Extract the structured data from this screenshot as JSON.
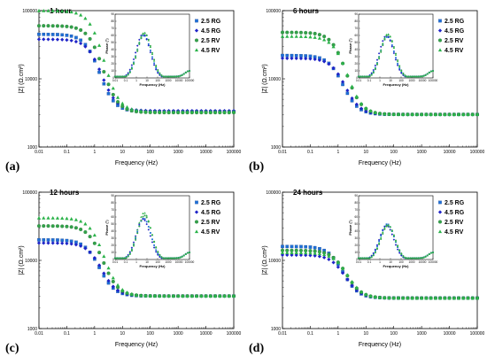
{
  "figure": {
    "legend_entries": [
      "2.5 RG",
      "4.5 RG",
      "2.5 RV",
      "4.5 RV"
    ],
    "colors": {
      "2.5 RG": "#1f6fd6",
      "4.5 RG": "#1f24c8",
      "2.5 RV": "#33a24a",
      "4.5 RV": "#2bb34a"
    },
    "markers": {
      "2.5 RG": "square",
      "4.5 RG": "diamond",
      "2.5 RV": "circle",
      "4.5 RV": "triangle"
    }
  },
  "chart_data": [
    {
      "type": "scatter",
      "panel_label": "(a)",
      "title": "1 hour",
      "xlabel": "Frequency (Hz)",
      "ylabel": "|Z| (Ω.cm²)",
      "xscale": "log",
      "yscale": "log",
      "xlim": [
        0.01,
        100000
      ],
      "ylim": [
        1000,
        100000
      ],
      "xticks": [
        "0.01",
        "0.1",
        "1",
        "10",
        "100",
        "1000",
        "10000",
        "100000"
      ],
      "yticks": [
        "1000",
        "10000",
        "100000"
      ],
      "legend": "inside inset, right",
      "series": [
        {
          "name": "2.5 RG",
          "low_freq_modulus": 45000,
          "high_freq_modulus": 3300
        },
        {
          "name": "4.5 RG",
          "low_freq_modulus": 38000,
          "high_freq_modulus": 3400
        },
        {
          "name": "2.5 RV",
          "low_freq_modulus": 60000,
          "high_freq_modulus": 3200
        },
        {
          "name": "4.5 RV",
          "low_freq_modulus": 100000,
          "high_freq_modulus": 3300
        }
      ],
      "inset": {
        "xlabel": "Frequency (Hz)",
        "ylabel": "Phase (°)",
        "xscale": "log",
        "xlim": [
          0.01,
          100000
        ],
        "ylim": [
          0,
          90
        ],
        "xticks": [
          "0.01",
          "0.1",
          "1",
          "10",
          "100",
          "1000",
          "10000",
          "100000"
        ],
        "yticks": [
          "0",
          "10",
          "20",
          "30",
          "40",
          "50",
          "60",
          "70",
          "80",
          "90"
        ],
        "peak_frequency_hz": 5,
        "peak_phase": [
          60,
          62,
          63,
          64
        ]
      }
    },
    {
      "type": "scatter",
      "panel_label": "(b)",
      "title": "6 hours",
      "xlabel": "Frequency (Hz)",
      "ylabel": "|Z| (Ω.cm²)",
      "xscale": "log",
      "yscale": "log",
      "xlim": [
        0.01,
        100000
      ],
      "ylim": [
        1000,
        100000
      ],
      "xticks": [
        "0.01",
        "0.1",
        "1",
        "10",
        "100",
        "1000",
        "10000",
        "100000"
      ],
      "yticks": [
        "1000",
        "10000",
        "100000"
      ],
      "legend": "inside inset, right",
      "series": [
        {
          "name": "2.5 RG",
          "low_freq_modulus": 22000,
          "high_freq_modulus": 3000
        },
        {
          "name": "4.5 RG",
          "low_freq_modulus": 20000,
          "high_freq_modulus": 3000
        },
        {
          "name": "2.5 RV",
          "low_freq_modulus": 48000,
          "high_freq_modulus": 3000
        },
        {
          "name": "4.5 RV",
          "low_freq_modulus": 42000,
          "high_freq_modulus": 3000
        }
      ],
      "inset": {
        "xlabel": "Frequency (Hz)",
        "ylabel": "Phase (°)",
        "xscale": "log",
        "xlim": [
          0.01,
          100000
        ],
        "ylim": [
          0,
          90
        ],
        "xticks": [
          "0.01",
          "0.1",
          "1",
          "10",
          "100",
          "1000",
          "10000",
          "100000"
        ],
        "yticks": [
          "0",
          "10",
          "20",
          "30",
          "40",
          "50",
          "60",
          "70",
          "80",
          "90"
        ],
        "peak_frequency_hz": 5,
        "peak_phase": [
          58,
          60,
          61,
          62
        ]
      }
    },
    {
      "type": "scatter",
      "panel_label": "(c)",
      "title": "12 hours",
      "xlabel": "Frequency (Hz)",
      "ylabel": "|Z| (Ω.cm²)",
      "xscale": "log",
      "yscale": "log",
      "xlim": [
        0.01,
        100000
      ],
      "ylim": [
        1000,
        100000
      ],
      "xticks": [
        "0.01",
        "0.1",
        "1",
        "10",
        "100",
        "1000",
        "10000",
        "100000"
      ],
      "yticks": [
        "1000",
        "10000",
        "100000"
      ],
      "legend": "inside inset, right",
      "series": [
        {
          "name": "2.5 RG",
          "low_freq_modulus": 20000,
          "high_freq_modulus": 3000
        },
        {
          "name": "4.5 RG",
          "low_freq_modulus": 18000,
          "high_freq_modulus": 3000
        },
        {
          "name": "2.5 RV",
          "low_freq_modulus": 32000,
          "high_freq_modulus": 3000
        },
        {
          "name": "4.5 RV",
          "low_freq_modulus": 42000,
          "high_freq_modulus": 3000
        }
      ],
      "inset": {
        "xlabel": "Frequency (Hz)",
        "ylabel": "Phase (°)",
        "xscale": "log",
        "xlim": [
          0.01,
          100000
        ],
        "ylim": [
          0,
          90
        ],
        "xticks": [
          "0.01",
          "0.1",
          "1",
          "10",
          "100",
          "1000",
          "10000",
          "100000"
        ],
        "yticks": [
          "0",
          "10",
          "20",
          "30",
          "40",
          "50",
          "60",
          "70",
          "80",
          "90"
        ],
        "peak_frequency_hz": 5,
        "peak_phase": [
          58,
          57,
          62,
          66
        ]
      }
    },
    {
      "type": "scatter",
      "panel_label": "(d)",
      "title": "24 hours",
      "xlabel": "Frequency (Hz)",
      "ylabel": "|Z| (Ω.cm²)",
      "xscale": "log",
      "yscale": "log",
      "xlim": [
        0.01,
        100000
      ],
      "ylim": [
        1000,
        100000
      ],
      "xticks": [
        "0.01",
        "0.1",
        "1",
        "10",
        "100",
        "1000",
        "10000",
        "100000"
      ],
      "yticks": [
        "1000",
        "10000",
        "100000"
      ],
      "legend": "inside inset, right",
      "series": [
        {
          "name": "2.5 RG",
          "low_freq_modulus": 16000,
          "high_freq_modulus": 2800
        },
        {
          "name": "4.5 RG",
          "low_freq_modulus": 12000,
          "high_freq_modulus": 2800
        },
        {
          "name": "2.5 RV",
          "low_freq_modulus": 14000,
          "high_freq_modulus": 2800
        },
        {
          "name": "4.5 RV",
          "low_freq_modulus": 13000,
          "high_freq_modulus": 2800
        }
      ],
      "inset": {
        "xlabel": "Frequency (Hz)",
        "ylabel": "Phase (°)",
        "xscale": "log",
        "xlim": [
          0.01,
          100000
        ],
        "ylim": [
          0,
          90
        ],
        "xticks": [
          "0.01",
          "0.1",
          "1",
          "10",
          "100",
          "1000",
          "10000",
          "100000"
        ],
        "yticks": [
          "0",
          "10",
          "20",
          "30",
          "40",
          "50",
          "60",
          "70",
          "80",
          "90"
        ],
        "peak_frequency_hz": 5,
        "peak_phase": [
          50,
          48,
          48,
          49
        ]
      }
    }
  ]
}
